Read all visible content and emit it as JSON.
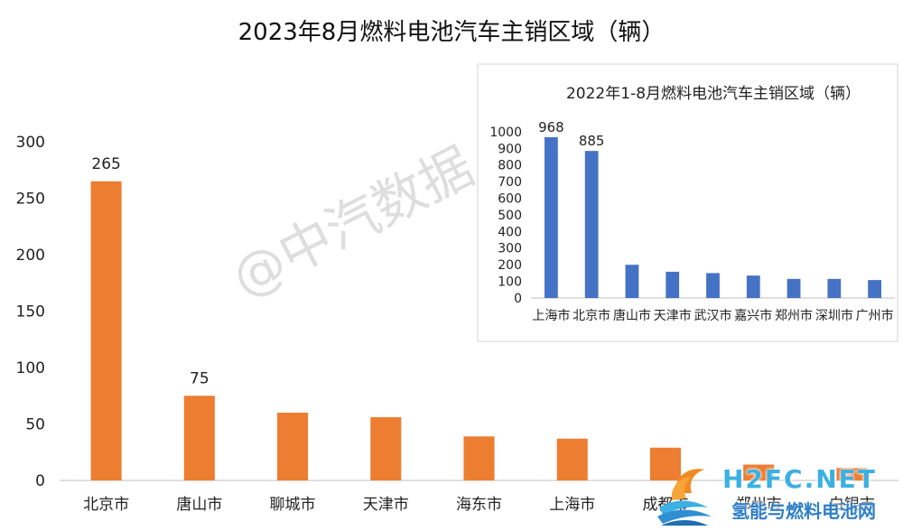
{
  "chart_data": [
    {
      "type": "bar",
      "title": "2023年8月燃料电池汽车主销区域（辆）",
      "categories": [
        "北京市",
        "唐山市",
        "聊城市",
        "天津市",
        "海东市",
        "上海市",
        "成都市",
        "郑州市",
        "白银市"
      ],
      "values": [
        265,
        75,
        60,
        56,
        39,
        37,
        29,
        14,
        11
      ],
      "data_labels": [
        "265",
        "75",
        "",
        "",
        "",
        "",
        "",
        "",
        ""
      ],
      "ylim": [
        0,
        300
      ],
      "yticks": [
        0,
        50,
        100,
        150,
        200,
        250,
        300
      ],
      "color": "#ED7D31",
      "grid": false
    },
    {
      "type": "bar",
      "title": "2022年1-8月燃料电池汽车主销区域（辆）",
      "categories": [
        "上海市",
        "北京市",
        "唐山市",
        "天津市",
        "武汉市",
        "嘉兴市",
        "郑州市",
        "深圳市",
        "广州市"
      ],
      "values": [
        968,
        885,
        200,
        158,
        150,
        135,
        115,
        115,
        108
      ],
      "data_labels": [
        "968",
        "885",
        "",
        "",
        "",
        "",
        "",
        "",
        ""
      ],
      "ylim": [
        0,
        1000
      ],
      "yticks": [
        0,
        100,
        200,
        300,
        400,
        500,
        600,
        700,
        800,
        900,
        1000
      ],
      "color": "#4472C4",
      "grid": false,
      "placement": "inset top-right"
    }
  ],
  "watermark": "@中汽数据",
  "logo": {
    "top_text": "H2FC.NET",
    "bottom_text": "氢能与燃料电池网",
    "colors": {
      "flame": "#f28a1e",
      "wave": "#3bb0e3",
      "text": "#2f7fc8"
    }
  }
}
